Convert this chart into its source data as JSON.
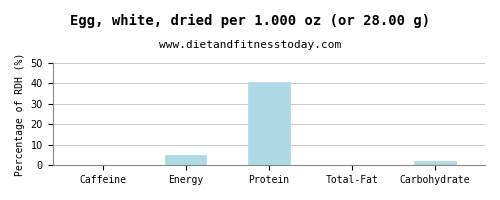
{
  "title": "Egg, white, dried per 1.000 oz (or 28.00 g)",
  "subtitle": "www.dietandfitnesstoday.com",
  "ylabel": "Percentage of RDH (%)",
  "categories": [
    "Caffeine",
    "Energy",
    "Protein",
    "Total-Fat",
    "Carbohydrate"
  ],
  "values": [
    0,
    5.2,
    40.8,
    0,
    2.0
  ],
  "bar_color": "#add8e6",
  "bar_edge_color": "#add8e6",
  "ylim": [
    0,
    50
  ],
  "yticks": [
    0,
    10,
    20,
    30,
    40,
    50
  ],
  "background_color": "#ffffff",
  "plot_bg_color": "#ffffff",
  "title_fontsize": 10,
  "subtitle_fontsize": 8,
  "ylabel_fontsize": 7,
  "tick_fontsize": 7,
  "grid_color": "#cccccc"
}
